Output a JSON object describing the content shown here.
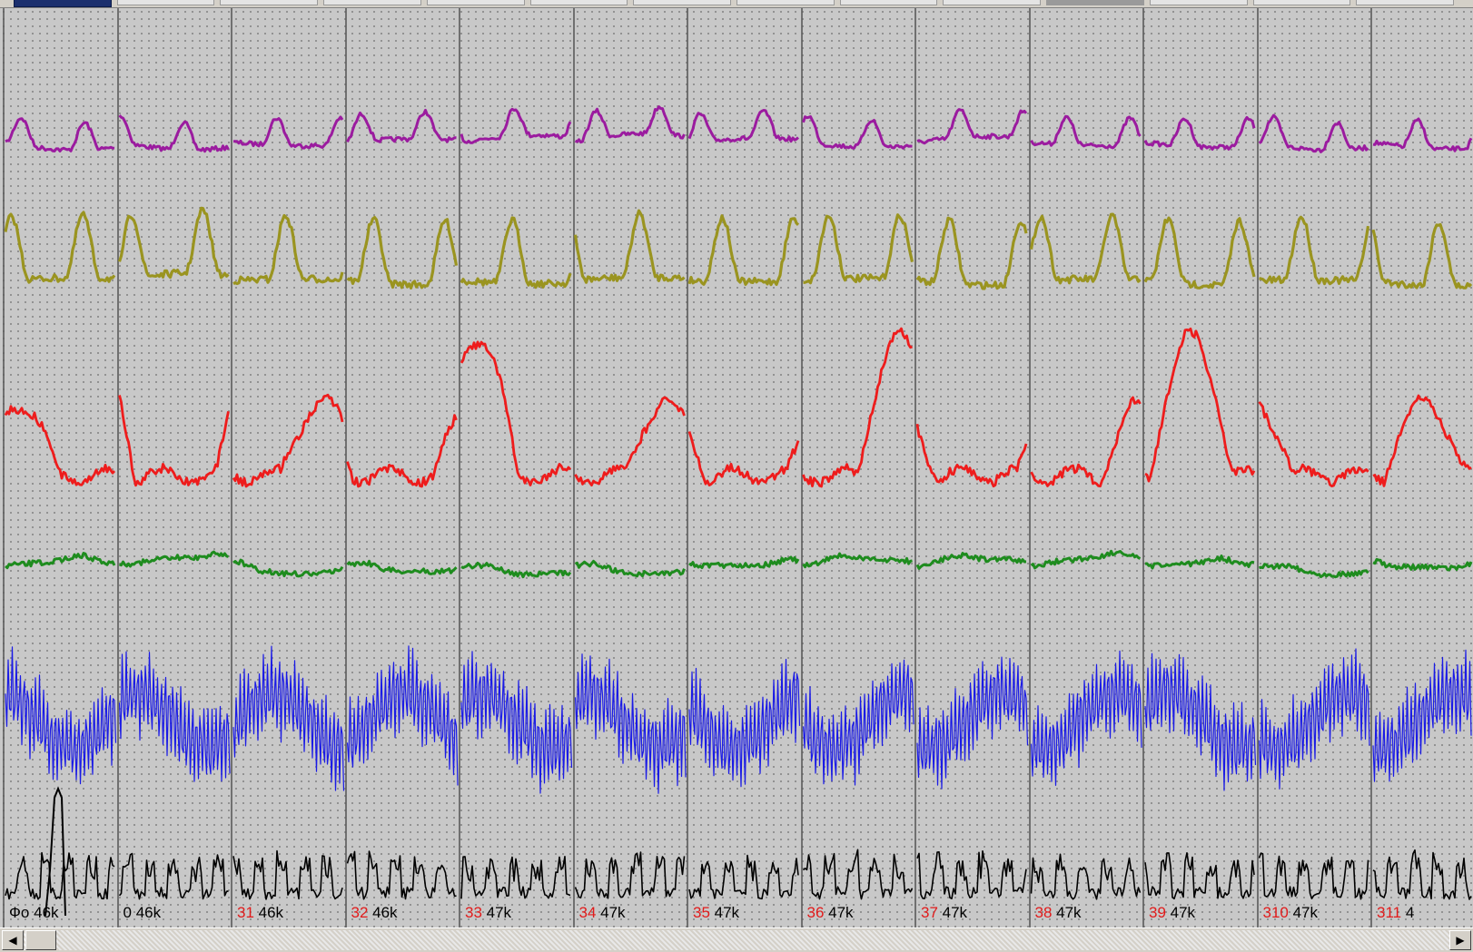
{
  "window": {
    "tab_count": 14,
    "active_tab_index": 0
  },
  "epochs": [
    {
      "number": "",
      "label": "Фо",
      "value": "46k"
    },
    {
      "number": "",
      "label": "0",
      "value": "46k"
    },
    {
      "number": "31",
      "label": "",
      "value": "46k"
    },
    {
      "number": "32",
      "label": "",
      "value": "46k"
    },
    {
      "number": "33",
      "label": "",
      "value": "47k"
    },
    {
      "number": "34",
      "label": "",
      "value": "47k"
    },
    {
      "number": "35",
      "label": "",
      "value": "47k"
    },
    {
      "number": "36",
      "label": "",
      "value": "47k"
    },
    {
      "number": "37",
      "label": "",
      "value": "47k"
    },
    {
      "number": "38",
      "label": "",
      "value": "47k"
    },
    {
      "number": "39",
      "label": "",
      "value": "47k"
    },
    {
      "number": "310",
      "label": "",
      "value": "47k"
    },
    {
      "number": "311",
      "label": "",
      "value": "4"
    }
  ],
  "channels": [
    {
      "id": "ch1",
      "color": "#9b1b9f"
    },
    {
      "id": "ch2",
      "color": "#9a9420"
    },
    {
      "id": "ch3",
      "color": "#ee1c1c"
    },
    {
      "id": "ch4",
      "color": "#1e8c1e"
    },
    {
      "id": "ch5",
      "color": "#1a1ae6"
    },
    {
      "id": "ch6",
      "color": "#000000"
    }
  ],
  "colors": {
    "background": "#c8c8c8",
    "epoch_number": "#e11b1b"
  },
  "scrollbar": {
    "left_arrow": "◀",
    "right_arrow": "▶"
  }
}
